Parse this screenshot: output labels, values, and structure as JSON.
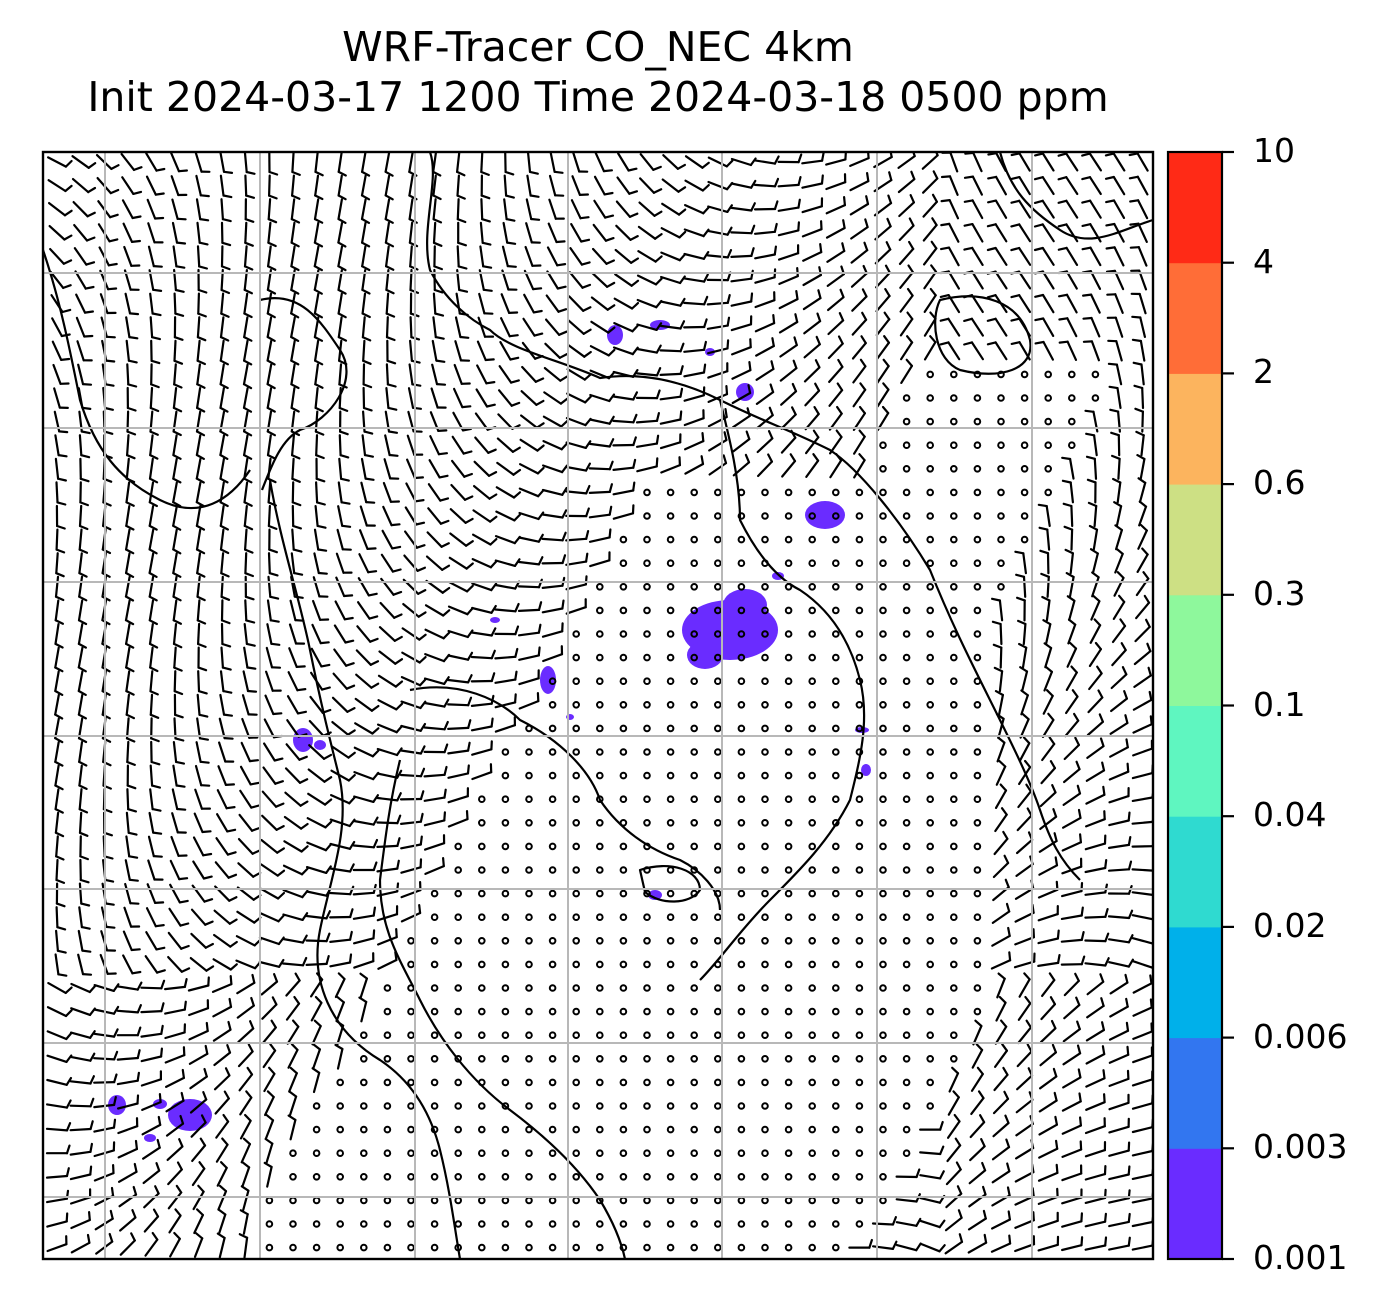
{
  "title": {
    "line1": "WRF-Tracer CO_NEC 4km",
    "line2": "Init 2024-03-17 1200 Time 2024-03-18 0500 ppm"
  },
  "colorbar": {
    "levels": [
      "0.001",
      "0.003",
      "0.006",
      "0.02",
      "0.04",
      "0.1",
      "0.3",
      "0.6",
      "2",
      "4",
      "10"
    ],
    "colors": [
      "#6a2cff",
      "#3276f0",
      "#00b0ea",
      "#2fdad0",
      "#5ff6c0",
      "#8ef89c",
      "#cde084",
      "#fcb45e",
      "#ff6d37",
      "#ff2a16"
    ]
  },
  "map": {
    "gridline_color": "#b8b8b8",
    "coastline_color": "#000000",
    "wind_barb_color": "#000000",
    "tracer_color": "#6a2cff"
  }
}
